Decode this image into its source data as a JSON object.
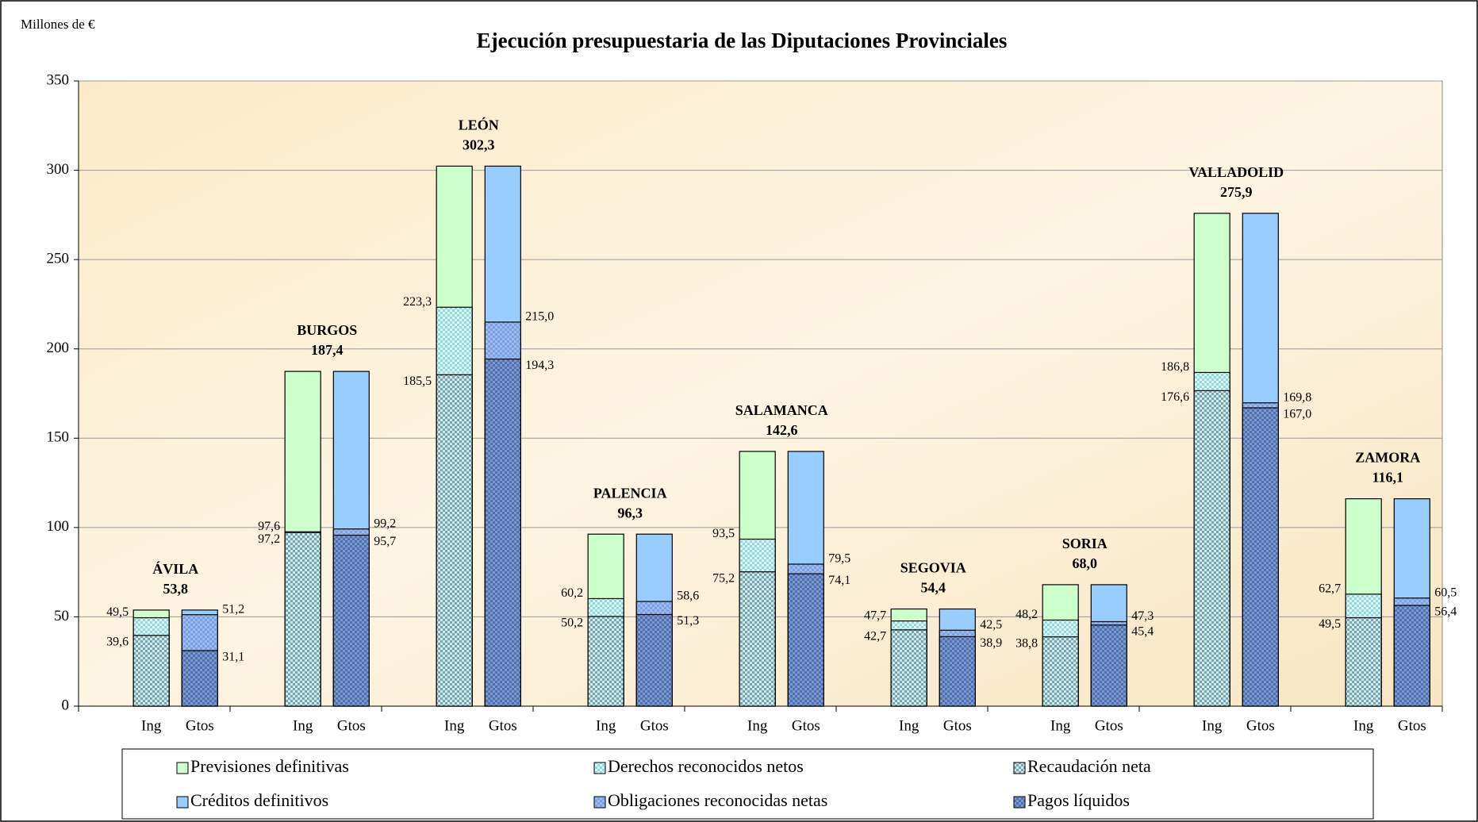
{
  "chart_data": {
    "type": "overlapped_bar",
    "title": "Ejecución presupuestaria de las Diputaciones Provinciales",
    "y_label": "Millones de €",
    "categories": [
      "ÁVILA",
      "BURGOS",
      "LEÓN",
      "PALENCIA",
      "SALAMANCA",
      "SEGOVIA",
      "SORIA",
      "VALLADOLID",
      "ZAMORA"
    ],
    "bar_labels": [
      "Ing",
      "Gtos"
    ],
    "ylim": [
      0,
      350
    ],
    "yticks": [
      0,
      50,
      100,
      150,
      200,
      250,
      300,
      350
    ],
    "grid": true,
    "series": [
      {
        "name": "Previsiones definitivas",
        "color": "#ccffcc",
        "bar": 0,
        "pattern": false,
        "values": [
          53.8,
          187.4,
          302.3,
          96.3,
          142.6,
          54.4,
          68.0,
          275.9,
          116.1
        ],
        "value_labels": [
          "53,8",
          "187,4",
          "302,3",
          "96,3",
          "142,6",
          "54,4",
          "68,0",
          "275,9",
          "116,1"
        ]
      },
      {
        "name": "Derechos reconocidos netos",
        "color": "#ccffee",
        "bar": 0,
        "pattern": true,
        "values": [
          49.5,
          97.6,
          223.3,
          60.2,
          93.5,
          47.7,
          48.2,
          186.8,
          62.7
        ],
        "value_labels": [
          "49,5",
          "97,6",
          "223,3",
          "60,2",
          "93,5",
          "47,7",
          "48,2",
          "186,8",
          "62,7"
        ]
      },
      {
        "name": "Recaudación neta",
        "color": "#c8f0e0",
        "bar": 0,
        "pattern": true,
        "values": [
          39.6,
          97.2,
          185.5,
          50.2,
          75.2,
          42.7,
          38.8,
          176.6,
          49.5
        ],
        "value_labels": [
          "39,6",
          "97,2",
          "185,5",
          "50,2",
          "75,2",
          "42,7",
          "38,8",
          "176,6",
          "49,5"
        ]
      },
      {
        "name": "Créditos definitivos",
        "color": "#99ccff",
        "bar": 1,
        "pattern": false,
        "values": [
          53.8,
          187.4,
          302.3,
          96.3,
          142.6,
          54.4,
          68.0,
          275.9,
          116.1
        ]
      },
      {
        "name": "Obligaciones reconocidas netas",
        "color": "#99bbee",
        "bar": 1,
        "pattern": true,
        "values": [
          51.2,
          99.2,
          215.0,
          58.6,
          79.5,
          42.5,
          47.3,
          169.8,
          60.5
        ],
        "value_labels": [
          "51,2",
          "99,2",
          "215,0",
          "58,6",
          "79,5",
          "42,5",
          "47,3",
          "169,8",
          "60,5"
        ]
      },
      {
        "name": "Pagos líquidos",
        "color": "#7799cc",
        "bar": 1,
        "pattern": true,
        "values": [
          31.1,
          95.7,
          194.3,
          51.3,
          74.1,
          38.9,
          45.4,
          167.0,
          56.4
        ],
        "value_labels": [
          "31,1",
          "95,7",
          "194,3",
          "51,3",
          "74,1",
          "38,9",
          "45,4",
          "167,0",
          "56,4"
        ]
      }
    ]
  }
}
